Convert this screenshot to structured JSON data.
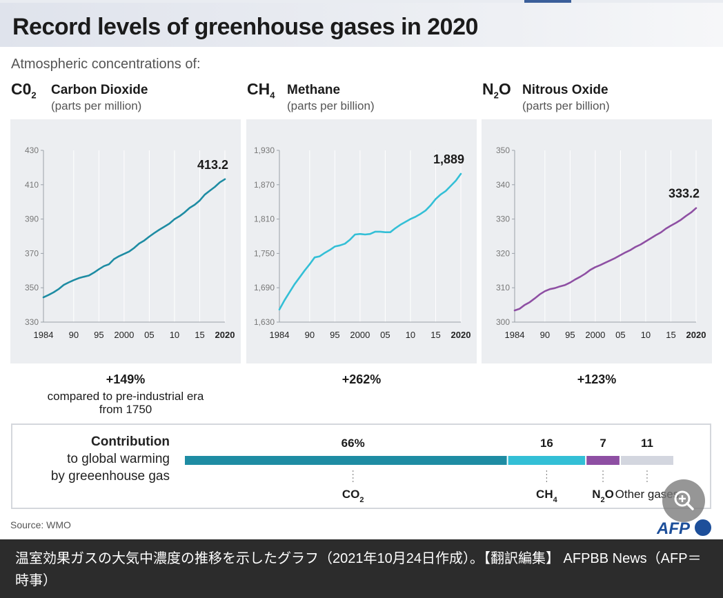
{
  "title": "Record levels of greenhouse gases in 2020",
  "subtitle": "Atmospheric concentrations of:",
  "gases": [
    {
      "formula_base": "C0",
      "formula_sub": "2",
      "name": "Carbon Dioxide",
      "unit": "(parts per million)",
      "change_pct": "+149%",
      "change_note": "compared to pre-industrial era from 1750"
    },
    {
      "formula_base": "CH",
      "formula_sub": "4",
      "name": "Methane",
      "unit": "(parts per billion)",
      "change_pct": "+262%",
      "change_note": ""
    },
    {
      "formula_base": "N",
      "formula_sub": "2",
      "formula_tail": "O",
      "name": "Nitrous Oxide",
      "unit": "(parts per billion)",
      "change_pct": "+123%",
      "change_note": ""
    }
  ],
  "chart_data": [
    {
      "type": "line",
      "title": "",
      "color": "#1e8ca3",
      "ylim": [
        330,
        430
      ],
      "yticks": [
        "330",
        "350",
        "370",
        "390",
        "410",
        "430"
      ],
      "ytick_values": [
        330,
        350,
        370,
        390,
        410,
        430
      ],
      "xlim": [
        1984,
        2020
      ],
      "xticks": [
        "1984",
        "90",
        "95",
        "2000",
        "05",
        "10",
        "15",
        "2020"
      ],
      "xtick_values": [
        1984,
        1990,
        1995,
        2000,
        2005,
        2010,
        2015,
        2020
      ],
      "end_label": "413.2",
      "series": [
        {
          "x": [
            1984,
            1985,
            1986,
            1987,
            1988,
            1989,
            1990,
            1991,
            1992,
            1993,
            1994,
            1995,
            1996,
            1997,
            1998,
            1999,
            2000,
            2001,
            2002,
            2003,
            2004,
            2005,
            2006,
            2007,
            2008,
            2009,
            2010,
            2011,
            2012,
            2013,
            2014,
            2015,
            2016,
            2017,
            2018,
            2019,
            2020
          ],
          "y": [
            344.4,
            345.8,
            347.3,
            349.2,
            351.6,
            353.1,
            354.4,
            355.6,
            356.4,
            357.1,
            358.8,
            360.8,
            362.6,
            363.7,
            366.7,
            368.4,
            369.7,
            371.1,
            373.2,
            375.8,
            377.5,
            379.8,
            381.9,
            383.8,
            385.6,
            387.4,
            389.9,
            391.7,
            393.9,
            396.5,
            398.3,
            400.8,
            404.2,
            406.5,
            408.7,
            411.4,
            413.2
          ]
        }
      ]
    },
    {
      "type": "line",
      "title": "",
      "color": "#33bfd6",
      "ylim": [
        1630,
        1930
      ],
      "yticks": [
        "1,630",
        "1,690",
        "1,750",
        "1,810",
        "1,870",
        "1,930"
      ],
      "ytick_values": [
        1630,
        1690,
        1750,
        1810,
        1870,
        1930
      ],
      "xlim": [
        1984,
        2020
      ],
      "xticks": [
        "1984",
        "90",
        "95",
        "2000",
        "05",
        "10",
        "15",
        "2020"
      ],
      "xtick_values": [
        1984,
        1990,
        1995,
        2000,
        2005,
        2010,
        2015,
        2020
      ],
      "end_label": "1,889",
      "series": [
        {
          "x": [
            1984,
            1985,
            1986,
            1987,
            1988,
            1989,
            1990,
            1991,
            1992,
            1993,
            1994,
            1995,
            1996,
            1997,
            1998,
            1999,
            2000,
            2001,
            2002,
            2003,
            2004,
            2005,
            2006,
            2007,
            2008,
            2009,
            2010,
            2011,
            2012,
            2013,
            2014,
            2015,
            2016,
            2017,
            2018,
            2019,
            2020
          ],
          "y": [
            1652,
            1668,
            1682,
            1696,
            1708,
            1720,
            1731,
            1743,
            1745,
            1751,
            1756,
            1762,
            1764,
            1767,
            1774,
            1783,
            1784,
            1783,
            1784,
            1788,
            1788,
            1787,
            1787,
            1794,
            1800,
            1805,
            1810,
            1814,
            1819,
            1825,
            1834,
            1845,
            1853,
            1859,
            1868,
            1877,
            1889
          ]
        }
      ]
    },
    {
      "type": "line",
      "title": "",
      "color": "#8e4fa3",
      "ylim": [
        300,
        350
      ],
      "yticks": [
        "300",
        "310",
        "320",
        "330",
        "340",
        "350"
      ],
      "ytick_values": [
        300,
        310,
        320,
        330,
        340,
        350
      ],
      "xlim": [
        1984,
        2020
      ],
      "xticks": [
        "1984",
        "90",
        "95",
        "2000",
        "05",
        "10",
        "15",
        "2020"
      ],
      "xtick_values": [
        1984,
        1990,
        1995,
        2000,
        2005,
        2010,
        2015,
        2020
      ],
      "end_label": "333.2",
      "series": [
        {
          "x": [
            1984,
            1985,
            1986,
            1987,
            1988,
            1989,
            1990,
            1991,
            1992,
            1993,
            1994,
            1995,
            1996,
            1997,
            1998,
            1999,
            2000,
            2001,
            2002,
            2003,
            2004,
            2005,
            2006,
            2007,
            2008,
            2009,
            2010,
            2011,
            2012,
            2013,
            2014,
            2015,
            2016,
            2017,
            2018,
            2019,
            2020
          ],
          "y": [
            303.4,
            303.9,
            305.0,
            305.8,
            306.9,
            308.1,
            309.0,
            309.6,
            309.9,
            310.4,
            310.8,
            311.5,
            312.4,
            313.2,
            314.1,
            315.2,
            316.0,
            316.6,
            317.3,
            318.0,
            318.7,
            319.5,
            320.3,
            321.0,
            321.9,
            322.6,
            323.5,
            324.4,
            325.3,
            326.1,
            327.2,
            328.1,
            328.9,
            329.8,
            330.9,
            331.9,
            333.2
          ]
        }
      ]
    },
    {
      "type": "bar",
      "title": "Contribution to global warming by greeenhouse gas",
      "stacked": true,
      "categories": [
        "CO2",
        "CH4",
        "N2O",
        "Other gases"
      ],
      "values": [
        66,
        16,
        7,
        11
      ],
      "value_labels": [
        "66%",
        "16",
        "7",
        "11"
      ],
      "colors": [
        "#1e8ca3",
        "#33bfd6",
        "#8e4fa3",
        "#d3d6df"
      ]
    }
  ],
  "contribution": {
    "label_bold": "Contribution",
    "label_line2": "to global warming",
    "label_line3": "by greeenhouse gas",
    "cat_labels": [
      {
        "base": "CO",
        "sub": "2",
        "tail": ""
      },
      {
        "base": "CH",
        "sub": "4",
        "tail": ""
      },
      {
        "base": "N",
        "sub": "2",
        "tail": "O"
      },
      {
        "base": "Other gases",
        "sub": "",
        "tail": ""
      }
    ]
  },
  "source": "Source: WMO",
  "logo_text": "AFP",
  "caption": "温室効果ガスの大気中濃度の推移を示したグラフ（2021年10月24日作成）。【翻訳編集】 AFPBB News（AFP＝時事）"
}
